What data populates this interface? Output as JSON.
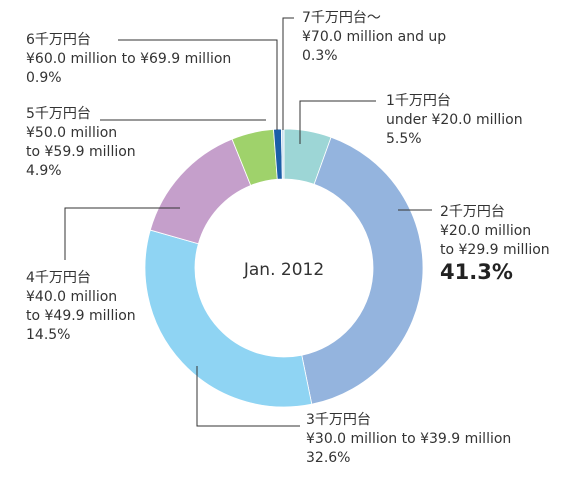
{
  "chart_data": {
    "type": "donut",
    "center_label": "Jan. 2012",
    "categories": [
      "1千万円台",
      "2千万円台",
      "3千万円台",
      "4千万円台",
      "5千万円台",
      "6千万円台",
      "7千万円台～"
    ],
    "sublabels": [
      [
        "under ¥20.0 million"
      ],
      [
        "¥20.0 million",
        "to ¥29.9 million"
      ],
      [
        "¥30.0 million to ¥39.9 million"
      ],
      [
        "¥40.0 million",
        "to ¥49.9 million"
      ],
      [
        "¥50.0 million",
        "to ¥59.9 million"
      ],
      [
        "¥60.0 million to ¥69.9 million"
      ],
      [
        "¥70.0 million and up"
      ]
    ],
    "values": [
      5.5,
      41.3,
      32.6,
      14.5,
      4.9,
      0.9,
      0.3
    ],
    "value_labels": [
      "5.5%",
      "41.3%",
      "32.6%",
      "14.5%",
      "4.9%",
      "0.9%",
      "0.3%"
    ],
    "colors": [
      "#9dd6d6",
      "#94b4de",
      "#8fd4f3",
      "#c59fcb",
      "#9fd26b",
      "#1b5ea8",
      "#c9dff0"
    ]
  }
}
